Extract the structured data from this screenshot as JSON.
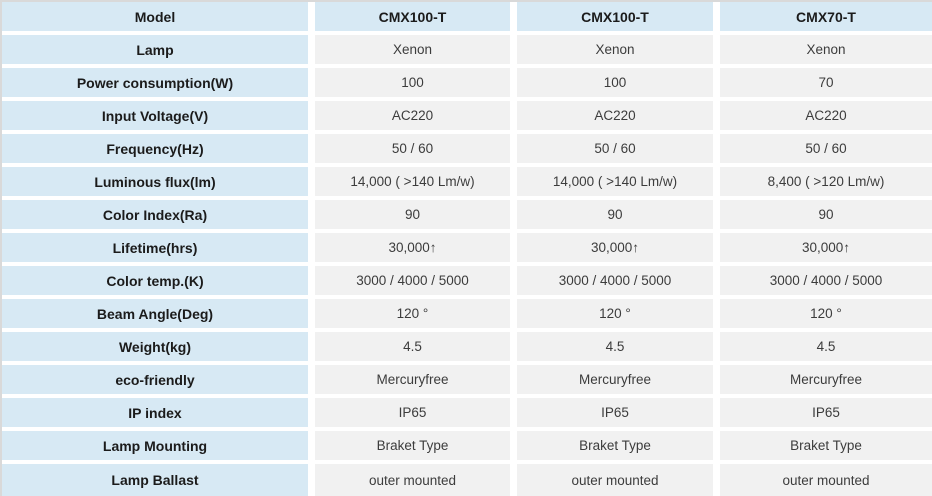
{
  "table": {
    "header": {
      "label": "Model",
      "columns": [
        "CMX100-T",
        "CMX100-T",
        "CMX70-T"
      ]
    },
    "rows": [
      {
        "label": "Lamp",
        "values": [
          "Xenon",
          "Xenon",
          "Xenon"
        ]
      },
      {
        "label": "Power consumption(W)",
        "values": [
          "100",
          "100",
          "70"
        ]
      },
      {
        "label": "Input Voltage(V)",
        "values": [
          "AC220",
          "AC220",
          "AC220"
        ]
      },
      {
        "label": "Frequency(Hz)",
        "values": [
          "50 / 60",
          "50 / 60",
          "50 / 60"
        ]
      },
      {
        "label": "Luminous flux(lm)",
        "values": [
          "14,000 ( >140 Lm/w)",
          "14,000 ( >140 Lm/w)",
          "8,400 ( >120 Lm/w)"
        ]
      },
      {
        "label": "Color Index(Ra)",
        "values": [
          "90",
          "90",
          "90"
        ]
      },
      {
        "label": "Lifetime(hrs)",
        "values": [
          "30,000↑",
          "30,000↑",
          "30,000↑"
        ]
      },
      {
        "label": "Color temp.(K)",
        "values": [
          "3000 / 4000 / 5000",
          "3000 / 4000 / 5000",
          "3000 / 4000 / 5000"
        ]
      },
      {
        "label": "Beam Angle(Deg)",
        "values": [
          "120 °",
          "120 °",
          "120 °"
        ]
      },
      {
        "label": "Weight(kg)",
        "values": [
          "4.5",
          "4.5",
          "4.5"
        ]
      },
      {
        "label": "eco-friendly",
        "values": [
          "Mercuryfree",
          "Mercuryfree",
          "Mercuryfree"
        ]
      },
      {
        "label": "IP index",
        "values": [
          "IP65",
          "IP65",
          "IP65"
        ]
      },
      {
        "label": "Lamp Mounting",
        "values": [
          "Braket Type",
          "Braket Type",
          "Braket Type"
        ]
      },
      {
        "label": "Lamp Ballast",
        "values": [
          "outer mounted",
          "outer mounted",
          "outer mounted"
        ]
      }
    ],
    "colors": {
      "label_bg": "#d7e9f4",
      "header_bg": "#d7e9f4",
      "cell_bg": "#f1f1f1",
      "gap_color": "#ffffff",
      "edge_border": "#d9d9d9",
      "label_text": "#1b1b1b",
      "value_text": "#3c3c3c"
    }
  }
}
